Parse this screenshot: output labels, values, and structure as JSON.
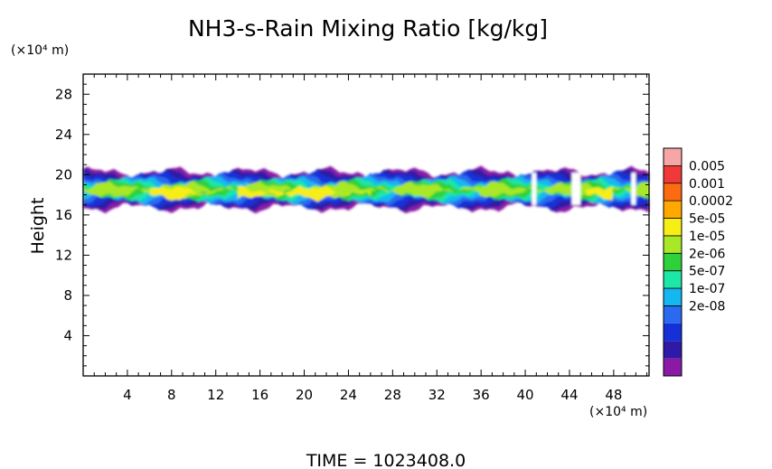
{
  "chart_data": {
    "type": "heatmap",
    "title": "NH3-s-Rain Mixing Ratio [kg/kg]",
    "ylabel": "Height",
    "y_unit_label": "(×10⁴ m)",
    "x_unit_label": "(×10⁴ m)",
    "xlim": [
      0,
      51.2
    ],
    "ylim": [
      0,
      30
    ],
    "x_ticks": [
      "4",
      "8",
      "12",
      "16",
      "20",
      "24",
      "28",
      "32",
      "36",
      "40",
      "44",
      "48"
    ],
    "y_ticks": [
      "4",
      "8",
      "12",
      "16",
      "20",
      "24",
      "28"
    ],
    "legend": {
      "placement": "right",
      "labels": [
        "0.005",
        "0.001",
        "0.0002",
        "5e-05",
        "1e-05",
        "2e-06",
        "5e-07",
        "1e-07",
        "2e-08"
      ],
      "colors": [
        "#f7a6a6",
        "#f03a3a",
        "#fc6a12",
        "#ffa800",
        "#f6ee14",
        "#a8e826",
        "#2ed13a",
        "#1ee6a6",
        "#14b8f0",
        "#2a6af0",
        "#1530d8",
        "#2e1aa6",
        "#8a1aa6"
      ]
    },
    "band": {
      "y_bottom_approx": 17,
      "y_top_approx": 20,
      "x_extent": [
        0,
        51.2
      ],
      "peak_level": "5e-05",
      "peak_height_approx": 18.2
    },
    "footer": "TIME  =  1023408.0"
  }
}
